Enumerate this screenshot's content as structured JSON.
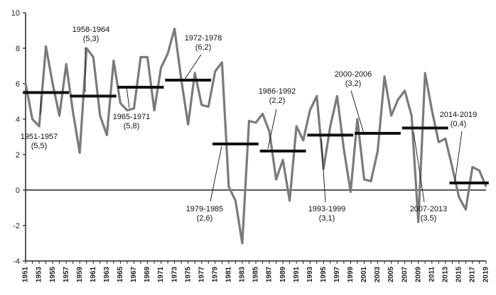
{
  "chart_data": {
    "type": "line",
    "title": "",
    "xlabel": "",
    "ylabel": "",
    "ylim": [
      -4,
      10
    ],
    "xlim": [
      1951,
      2019
    ],
    "grid": false,
    "y_ticks": [
      -4,
      -2,
      0,
      2,
      4,
      6,
      8,
      10
    ],
    "x_ticks": [
      1951,
      1953,
      1955,
      1957,
      1959,
      1961,
      1963,
      1965,
      1967,
      1969,
      1971,
      1973,
      1975,
      1977,
      1979,
      1981,
      1983,
      1985,
      1987,
      1989,
      1991,
      1993,
      1995,
      1997,
      1999,
      2001,
      2003,
      2005,
      2007,
      2009,
      2011,
      2013,
      2015,
      2017,
      2019
    ],
    "series": [
      {
        "x": [
          1951,
          1952,
          1953,
          1954,
          1955,
          1956,
          1957,
          1958,
          1959,
          1960,
          1961,
          1962,
          1963,
          1964,
          1965,
          1966,
          1967,
          1968,
          1969,
          1970,
          1971,
          1972,
          1973,
          1974,
          1975,
          1976,
          1977,
          1978,
          1979,
          1980,
          1981,
          1982,
          1983,
          1984,
          1985,
          1986,
          1987,
          1988,
          1989,
          1990,
          1991,
          1992,
          1993,
          1994,
          1995,
          1996,
          1997,
          1998,
          1999,
          2000,
          2001,
          2002,
          2003,
          2004,
          2005,
          2006,
          2007,
          2008,
          2009,
          2010,
          2011,
          2012,
          2013,
          2014,
          2015,
          2016,
          2017,
          2018,
          2019
        ],
        "values": [
          6.0,
          4.0,
          3.6,
          8.1,
          6.0,
          4.2,
          7.1,
          4.4,
          2.1,
          8.0,
          7.5,
          4.2,
          3.1,
          7.3,
          4.9,
          4.5,
          4.6,
          7.5,
          7.5,
          4.5,
          6.9,
          7.7,
          9.1,
          6.2,
          3.7,
          6.6,
          4.8,
          4.7,
          6.7,
          7.2,
          0.2,
          -0.6,
          -3.0,
          3.9,
          3.8,
          4.3,
          3.3,
          0.6,
          1.7,
          -0.6,
          3.6,
          2.8,
          4.5,
          5.3,
          1.2,
          3.6,
          5.3,
          2.3,
          -0.1,
          4.0,
          0.6,
          0.5,
          2.2,
          6.4,
          4.2,
          5.1,
          5.6,
          4.2,
          -1.8,
          6.6,
          4.5,
          2.7,
          2.9,
          1.3,
          -0.4,
          -1.1,
          1.3,
          1.1,
          0.2
        ]
      }
    ],
    "period_averages": [
      {
        "label": "1951-1957",
        "value_label": "(5,5)",
        "start": 1951,
        "end": 1957,
        "value": 5.5
      },
      {
        "label": "1958-1964",
        "value_label": "(5,3)",
        "start": 1958,
        "end": 1964,
        "value": 5.3
      },
      {
        "label": "1965-1971",
        "value_label": "(5,8)",
        "start": 1965,
        "end": 1971,
        "value": 5.8
      },
      {
        "label": "1972-1978",
        "value_label": "(6,2)",
        "start": 1972,
        "end": 1978,
        "value": 6.2
      },
      {
        "label": "1979-1985",
        "value_label": "(2,6)",
        "start": 1979,
        "end": 1985,
        "value": 2.6
      },
      {
        "label": "1986-1992",
        "value_label": "(2,2)",
        "start": 1986,
        "end": 1992,
        "value": 2.2
      },
      {
        "label": "1993-1999",
        "value_label": "(3,1)",
        "start": 1993,
        "end": 1999,
        "value": 3.1
      },
      {
        "label": "2000-2006",
        "value_label": "(3,2)",
        "start": 2000,
        "end": 2006,
        "value": 3.2
      },
      {
        "label": "2007-2013",
        "value_label": "(3,5)",
        "start": 2007,
        "end": 2013,
        "value": 3.5
      },
      {
        "label": "2014-2019",
        "value_label": "(0,4)",
        "start": 2014,
        "end": 2019,
        "value": 0.4
      }
    ],
    "colors": {
      "line": "#7a7a7a",
      "average": "#111111",
      "axis": "#222222"
    }
  }
}
